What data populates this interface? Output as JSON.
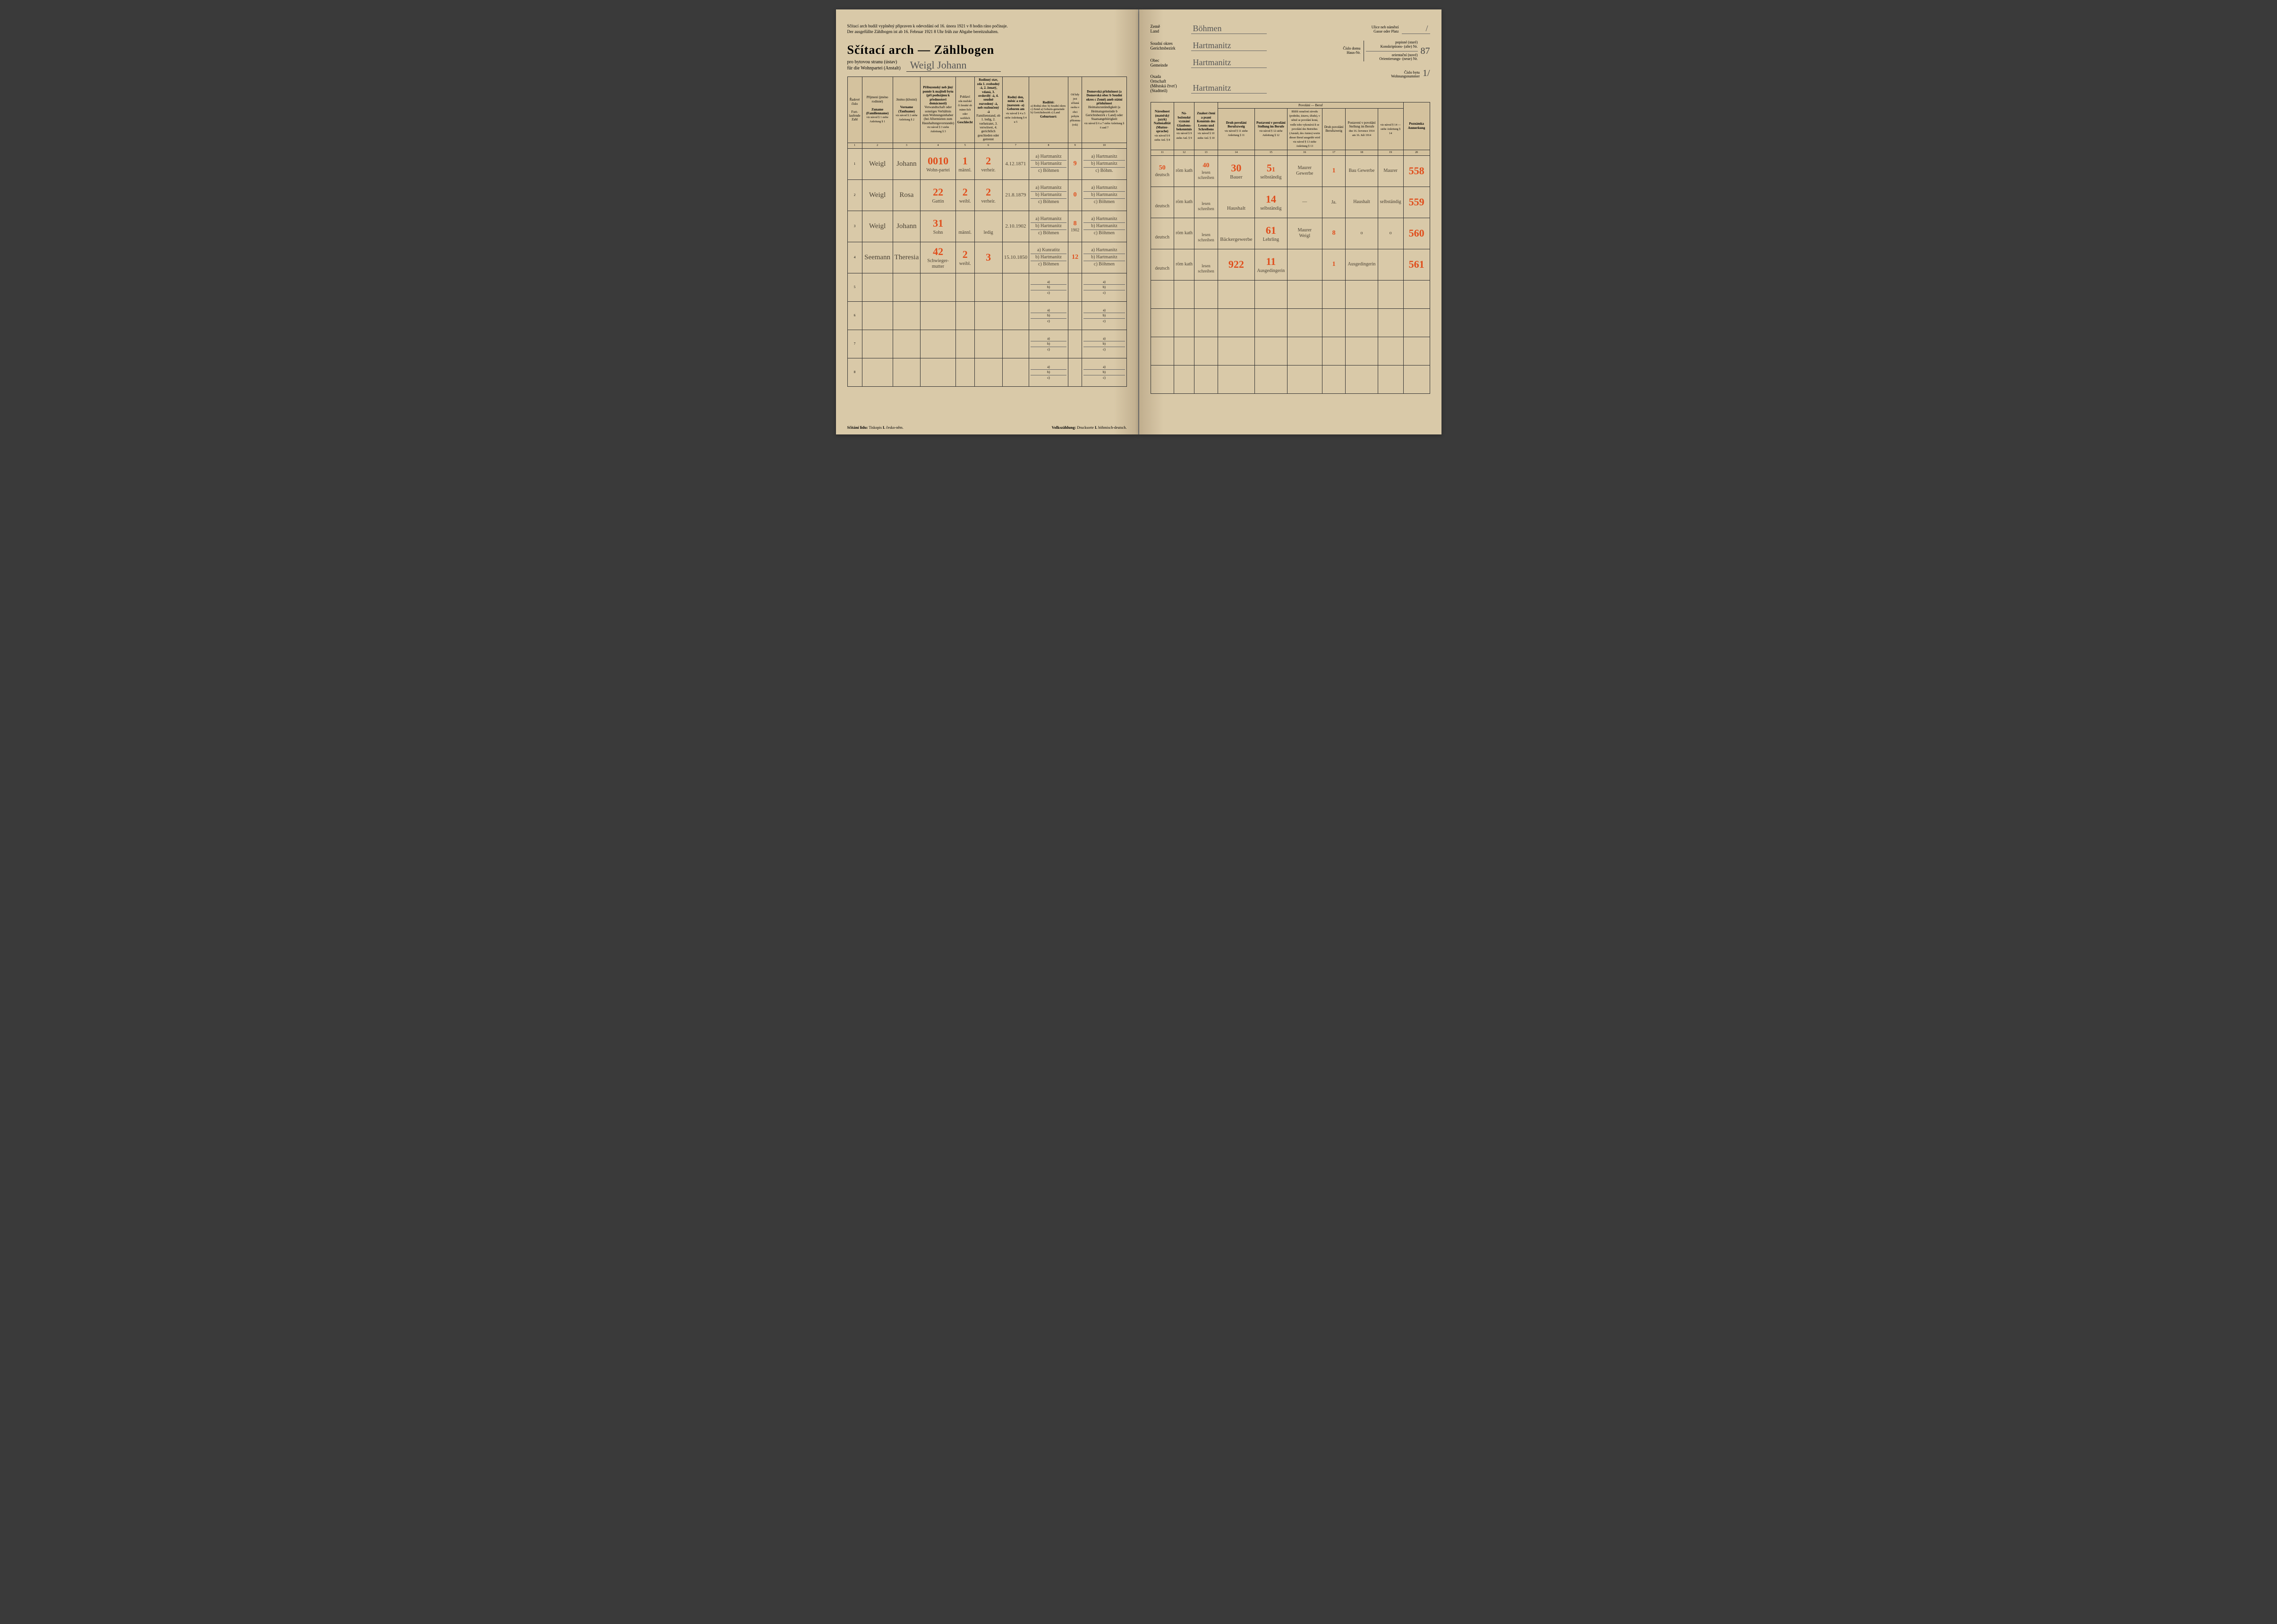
{
  "topNote": {
    "line1": "Sčítací arch budíž vyplněný připraven k odevzdání od 16. února 1921 v 8 hodin ráno počínaje.",
    "line2": "Der ausgefüllte Zählbogen ist ab 16. Februar 1921 8 Uhr früh zur Abgabe bereitzuhalten."
  },
  "title": "Sčítací arch — Zählbogen",
  "subtitle1": "pro bytovou stranu (ústav)",
  "subtitle2": "für die Wohnpartei (Anstalt)",
  "household": "Weigl   Johann",
  "rightHeader": {
    "zeme": {
      "l1": "Země",
      "l2": "Land",
      "val": "Böhmen"
    },
    "okres": {
      "l1": "Soudní okres",
      "l2": "Gerichtsbezirk",
      "val": "Hartmanitz"
    },
    "obec": {
      "l1": "Obec",
      "l2": "Gemeinde",
      "val": "Hartmanitz"
    },
    "osada": {
      "l1": "Osada",
      "l2": "Ortschaft",
      "l3": "(Městská čtvrť)",
      "l4": "(Stadtteil)",
      "val": "Hartmanitz"
    },
    "ulice": {
      "l1": "Ulice neb náměstí",
      "l2": "Gasse oder Platz",
      "val": "/"
    },
    "dom": {
      "l1": "Číslo domu",
      "l2": "Haus-Nr.",
      "sub1a": "popisné (staré)",
      "sub1b": "Konskriptions- (alte) Nr.",
      "sub2a": "orientační (nové)",
      "sub2b": "Orientierungs- (neue) Nr.",
      "val": "87"
    },
    "byt": {
      "l1": "Číslo bytu",
      "l2": "Wohnungsnummer",
      "val": "1/"
    }
  },
  "leftCols": {
    "c1": {
      "a": "Řadové číslo",
      "b": "Fort-laufende Zahl"
    },
    "c2": {
      "a": "Příjmení (jméno rodinné)",
      "b": "Zuname (Familienname)",
      "n": "viz návod § 1\nsiehe Anleitung § 1"
    },
    "c3": {
      "a": "Jméno (křestní)",
      "b": "Vorname (Taufname)",
      "n": "viz návod § 2\nsiehe Anleitung § 2"
    },
    "c4": {
      "a": "Příbuzenský neb jiný poměr k majiteli bytu (při podnájmu k přednostovi domácnosti)",
      "b": "Verwandtschaft oder sonstiges Verhältnis zum Wohnungsinhaber (bei Aftermieten zum Haushaltungsvorstande)",
      "n": "viz návod § 3\nsiehe Anleitung § 3"
    },
    "c5": {
      "a": "Pohlaví",
      "b": "Geschlecht",
      "sub": "zda mužské či ženské\nob männ-lich oder weiblich"
    },
    "c6": {
      "a": "Rodinný stav, zda 1. svobodný -á, 2. ženatý, vdaná, 3. ovdovělý -á, 4. soudně rozvedený -á, neb rozloučený -á",
      "b": "Familienstand, ob 1. ledig, 2. verheiratet, 3. verwitwet, 4. gerichtlich geschieden oder getrennt"
    },
    "c7": {
      "a": "Rodný den, měsíc a rok (narozen -a)",
      "b": "Geboren am",
      "n": "viz návod § 4 a 5\nsiehe Anleitung § 4 u 5"
    },
    "c8": {
      "a": "Rodiště:",
      "b": "Geburtsort:",
      "sub": "a) Rodná obec\nb) Soudní okres\nc) Země\na) Geburts-gemeinde\nb) Gerichtsbezirk\nc) Land",
      "n": "viz návod § 6 a 7\nsiehe Anleitung § 4 und 5"
    },
    "c9": {
      "a": "Od kdy jest sčítaná osoba v obci pobytu přítomna (rok)",
      "b": "",
      "n": "viz návod § 6\nsiehe Anleitung § 6"
    },
    "c10": {
      "a": "Domovská příslušnost (a Domovská obec b Soudní okres c Země) aneb státní příslušnost",
      "b": "Heimatszuständigkeit (a Heimatsgemeinde b Gerichtsbezirk c Land) oder Staatsangehörigkeit",
      "n": "viz návod § 6 a 7\nsiehe Anleitung § 6 und 7"
    }
  },
  "rightCols": {
    "c11": {
      "a": "Národnost (mateřský jazyk)",
      "b": "Nationalität (Mutter-sprache)",
      "n": "viz návod § 8\nsiehe Anl. § 8"
    },
    "c12": {
      "a": "Ná-boženské vyznání",
      "b": "Glaubens-bekenntnis",
      "n": "viz návod § 9\nsiehe Anl. § 9"
    },
    "c13": {
      "a": "Znalost čtení a psaní",
      "b": "Kenntnis des Lesens und Schreibens",
      "n": "viz návod § 10\nsiehe Anl. § 10"
    },
    "groupHead": "Povolání — Beruf",
    "c14": {
      "a": "Druh povolání",
      "b": "Berufszweig",
      "n": "viz návod § 11\nsiehe Anleitung § 11"
    },
    "c15": {
      "a": "Postavení v povolání",
      "b": "Stellung im Berufe",
      "n": "viz návod § 12\nsiehe Anleitung § 12"
    },
    "c16": {
      "a": "Bližší označení závodu (podniku, ústavu, úřadu), v němž se povolání koná, vedle toho vykonává-li se povolání des Betriebes (Anstalt, des Amtes) worin dieser Beruf ausgeübt wird",
      "n": "viz návod § 13\nsiehe Anleitung § 13"
    },
    "c17": {
      "a": "Druh povolání",
      "b": "Berufszweig"
    },
    "c18": {
      "a": "Postavení v povolání",
      "b": "Stellung im Berufe"
    },
    "c1718note": "dne 16. července 1914\nam 16. Juli 1914",
    "c20": {
      "a": "Poznámka",
      "b": "Anmerkung"
    },
    "note14": "viz návod § 14 — siehe Anleitung § 14"
  },
  "colNums": {
    "left": [
      "1",
      "2",
      "3",
      "4",
      "5",
      "6",
      "7",
      "8",
      "9",
      "10"
    ],
    "right": [
      "11",
      "12",
      "13",
      "14",
      "15",
      "16",
      "17",
      "18",
      "19",
      "20"
    ]
  },
  "rows": [
    {
      "num": "1",
      "surname": "Weigl",
      "given": "Johann",
      "rel": "Wohn-partei",
      "red4": "00",
      "red4b": "10",
      "sex": "männl.",
      "redSex": "1",
      "stav": "verheir.",
      "redStav": "2",
      "dob": "4.12.1871",
      "birthA": "Hartmanitz",
      "birthB": "Hartmanitz",
      "birthC": "Böhmen",
      "since": "",
      "redSince": "9",
      "heimA": "Hartmanitz",
      "heimB": "Hartmanitz",
      "heimC": "Böhm.",
      "nat": "deutsch",
      "redNat": "50",
      "rel12": "röm kath",
      "rw": "lesen schreiben",
      "red13": "40",
      "beruf": "Bauer",
      "red14": "30",
      "stell": "selbständig",
      "red15": "5",
      "red15b": "1",
      "c16a": "Maurer",
      "c16b": "Gewerbe",
      "c17": "",
      "red17": "1",
      "c18": "Bau Gewerbe",
      "c19": "Maurer",
      "note": "558"
    },
    {
      "num": "2",
      "surname": "Weigl",
      "given": "Rosa",
      "rel": "Gattin",
      "red4": "22",
      "sex": "weibl.",
      "redSex": "2",
      "stav": "verheir.",
      "redStav": "2",
      "dob": "21.8.1879",
      "birthA": "Hartmanitz",
      "birthB": "Hartmanitz",
      "birthC": "Böhmen",
      "since": "",
      "redSince": "0",
      "heimA": "Hartmanitz",
      "heimB": "Hartmanitz",
      "heimC": "Böhmen",
      "nat": "deutsch",
      "rel12": "röm kath",
      "rw": "lesen schreiben",
      "beruf": "Haushalt",
      "red14": "",
      "stell": "selbständig",
      "red15": "14",
      "c16a": "—",
      "c17": "Ja.",
      "c18": "Haushalt",
      "c19": "selbständig",
      "note": "559"
    },
    {
      "num": "3",
      "surname": "Weigl",
      "given": "Johann",
      "rel": "Sohn",
      "red4": "31",
      "sex": "männl.",
      "stav": "ledig",
      "dob": "2.10.1902",
      "birthA": "Hartmanitz",
      "birthB": "Hartmanitz",
      "birthC": "Böhmen",
      "since": "1902",
      "redSince": "8",
      "heimA": "Hartmanitz",
      "heimB": "Hartmanitz",
      "heimC": "Böhmen",
      "nat": "deutsch",
      "rel12": "röm kath",
      "rw": "lesen schreiben",
      "beruf": "Bäckergewerbe",
      "red14": "",
      "stell": "Lehrling",
      "red15": "61",
      "c16a": "Maurer",
      "c16b": "Weigl",
      "c17": "",
      "red17": "8",
      "c18": "o",
      "c19": "o",
      "note": "560"
    },
    {
      "num": "4",
      "surname": "Seemann",
      "given": "Theresia",
      "rel": "Schwieger-mutter",
      "red4": "42",
      "sex": "weibl.",
      "redSex": "2",
      "stav": "",
      "redStav": "3",
      "dob": "15.10.1850",
      "birthA": "Kunratitz",
      "birthB": "Hartmanitz",
      "birthC": "Böhmen",
      "since": "",
      "redSince": "12",
      "heimA": "Hartmanitz",
      "heimB": "Hartmanitz",
      "heimC": "Böhmen",
      "nat": "deutsch",
      "rel12": "röm kath",
      "rw": "lesen schreiben",
      "beruf": "",
      "red14": "922",
      "stell": "Ausgedingerin",
      "red15": "11",
      "c16a": "",
      "c17": "",
      "red17": "1",
      "c18": "Ausgedingerin",
      "c19": "",
      "note": "561"
    }
  ],
  "emptyRows": [
    5,
    6,
    7,
    8
  ],
  "footer": {
    "leftA": "Sčítání lidu:",
    "leftB": "Tiskopis",
    "leftC": "I.",
    "leftD": "česko-něm.",
    "rightA": "Volkszählung:",
    "rightB": "Drucksorte",
    "rightC": "I.",
    "rightD": "böhmisch-deutsch."
  }
}
